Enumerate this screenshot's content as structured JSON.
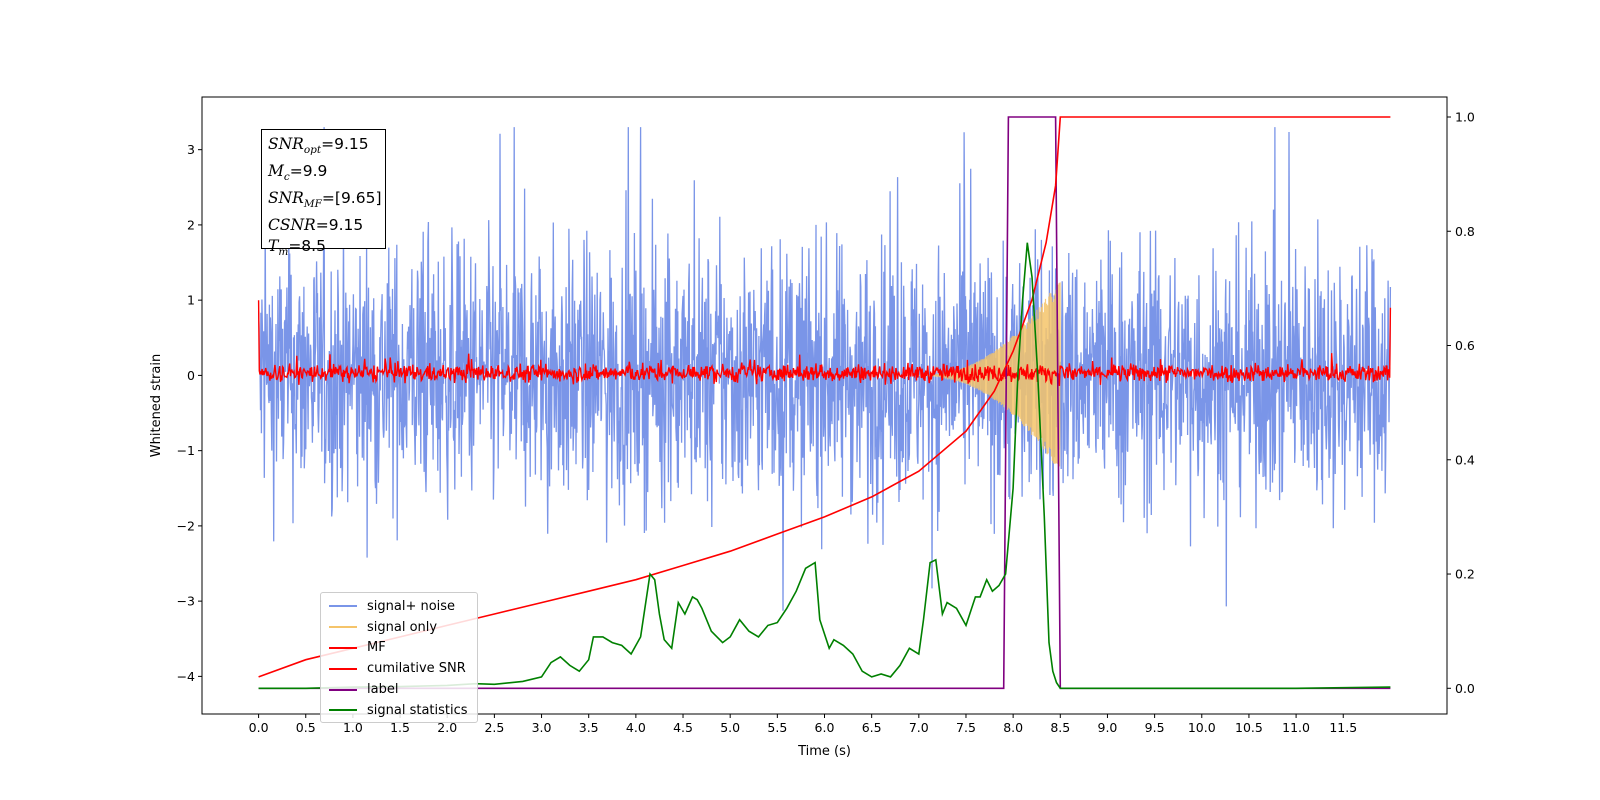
{
  "chart_data": {
    "type": "line",
    "title": "",
    "xlabel": "Time (s)",
    "ylabel": "Whitened strain",
    "xlim": [
      -0.6,
      12.6
    ],
    "ylim": [
      -4.5,
      3.7
    ],
    "y2lim": [
      -0.045,
      1.035
    ],
    "x_ticks": [
      0.0,
      0.5,
      1.0,
      1.5,
      2.0,
      2.5,
      3.0,
      3.5,
      4.0,
      4.5,
      5.0,
      5.5,
      6.0,
      6.5,
      7.0,
      7.5,
      8.0,
      8.5,
      9.0,
      9.5,
      10.0,
      10.5,
      11.0,
      11.5
    ],
    "x_tick_labels": [
      "0.0",
      "0.5",
      "1.0",
      "1.5",
      "2.0",
      "2.5",
      "3.0",
      "3.5",
      "4.0",
      "4.5",
      "5.0",
      "5.5",
      "6.0",
      "6.5",
      "7.0",
      "7.5",
      "8.0",
      "8.5",
      "9.0",
      "9.5",
      "10.0",
      "10.5",
      "11.0",
      "11.5"
    ],
    "y_ticks": [
      3,
      2,
      1,
      0,
      -1,
      -2,
      -3,
      -4
    ],
    "y_tick_labels": [
      "3",
      "2",
      "1",
      "0",
      "−1",
      "−2",
      "−3",
      "−4"
    ],
    "y2_ticks": [
      1.0,
      0.8,
      0.6,
      0.4,
      0.2,
      0.0
    ],
    "y2_tick_labels": [
      "1.0",
      "0.8",
      "0.6",
      "0.4",
      "0.2",
      "0.0"
    ],
    "grid": false,
    "legend_position": "lower-left",
    "series": [
      {
        "name": "signal+ noise",
        "color": "#7a95e8",
        "axis": "left",
        "description_range": [
          -3.5,
          3.3
        ],
        "t_range": [
          0.0,
          12.0
        ]
      },
      {
        "name": "signal only",
        "color": "#f5c46a",
        "axis": "left",
        "peak_amplitude": 1.3,
        "t_peak": 8.5
      },
      {
        "name": "MF",
        "color": "#ff0000",
        "axis": "left",
        "typical_range": [
          -0.15,
          0.3
        ],
        "t_range": [
          0.0,
          12.0
        ]
      },
      {
        "name": "cumilative SNR",
        "color": "#ff0000",
        "axis": "right",
        "x": [
          0.0,
          0.5,
          1.0,
          1.5,
          2.0,
          2.5,
          3.0,
          3.5,
          4.0,
          4.5,
          5.0,
          5.5,
          6.0,
          6.5,
          7.0,
          7.5,
          7.8,
          8.0,
          8.2,
          8.35,
          8.45,
          8.5,
          12.0
        ],
        "values": [
          0.02,
          0.05,
          0.07,
          0.09,
          0.11,
          0.13,
          0.15,
          0.17,
          0.19,
          0.215,
          0.24,
          0.27,
          0.3,
          0.335,
          0.38,
          0.45,
          0.52,
          0.59,
          0.68,
          0.78,
          0.88,
          1.0,
          1.0
        ]
      },
      {
        "name": "label",
        "color": "#800080",
        "axis": "right",
        "x": [
          0.0,
          7.9,
          7.95,
          8.45,
          8.5,
          12.0
        ],
        "values": [
          0.0,
          0.0,
          1.0,
          1.0,
          0.0,
          0.0
        ]
      },
      {
        "name": "signal statistics",
        "color": "#008000",
        "axis": "right",
        "x": [
          0.0,
          0.5,
          1.0,
          1.5,
          2.0,
          2.3,
          2.5,
          2.8,
          3.0,
          3.1,
          3.2,
          3.3,
          3.4,
          3.5,
          3.55,
          3.65,
          3.75,
          3.85,
          3.95,
          4.05,
          4.15,
          4.2,
          4.25,
          4.3,
          4.38,
          4.45,
          4.52,
          4.6,
          4.65,
          4.7,
          4.8,
          4.92,
          5.0,
          5.1,
          5.2,
          5.3,
          5.4,
          5.5,
          5.6,
          5.7,
          5.8,
          5.9,
          5.95,
          6.05,
          6.1,
          6.2,
          6.3,
          6.4,
          6.5,
          6.6,
          6.7,
          6.8,
          6.9,
          7.0,
          7.05,
          7.12,
          7.18,
          7.25,
          7.3,
          7.4,
          7.5,
          7.6,
          7.65,
          7.72,
          7.78,
          7.85,
          7.92,
          8.0,
          8.05,
          8.1,
          8.15,
          8.2,
          8.26,
          8.33,
          8.38,
          8.42,
          8.46,
          8.5,
          9.0,
          10.0,
          11.0,
          12.0
        ],
        "values": [
          0.0,
          0.0,
          0.002,
          0.003,
          0.005,
          0.008,
          0.007,
          0.012,
          0.02,
          0.045,
          0.055,
          0.04,
          0.03,
          0.05,
          0.09,
          0.09,
          0.08,
          0.075,
          0.06,
          0.09,
          0.2,
          0.19,
          0.13,
          0.085,
          0.07,
          0.15,
          0.13,
          0.16,
          0.155,
          0.14,
          0.1,
          0.08,
          0.09,
          0.12,
          0.1,
          0.09,
          0.11,
          0.115,
          0.14,
          0.17,
          0.21,
          0.22,
          0.12,
          0.07,
          0.085,
          0.075,
          0.06,
          0.03,
          0.02,
          0.025,
          0.02,
          0.04,
          0.07,
          0.06,
          0.12,
          0.22,
          0.225,
          0.13,
          0.15,
          0.14,
          0.11,
          0.16,
          0.16,
          0.19,
          0.17,
          0.18,
          0.2,
          0.35,
          0.55,
          0.68,
          0.78,
          0.72,
          0.55,
          0.3,
          0.08,
          0.03,
          0.01,
          0.0,
          0.0,
          0.0,
          0.0,
          0.002
        ]
      }
    ]
  },
  "stats_box": {
    "snr_opt_label": "SNR",
    "snr_opt_sub": "opt",
    "snr_opt_value": "=9.15",
    "mc_label": "M",
    "mc_sub": "c",
    "mc_value": "=9.9",
    "snr_mf_label": "SNR",
    "snr_mf_sub": "MF",
    "snr_mf_value": "=[9.65]",
    "csnr_label": "CSNR",
    "csnr_value": "=9.15",
    "tm_label": "T",
    "tm_sub": "m",
    "tm_value": "=8.5"
  },
  "legend": [
    {
      "label": "signal+ noise",
      "color": "#7a95e8"
    },
    {
      "label": "signal only",
      "color": "#f5c46a"
    },
    {
      "label": "MF",
      "color": "#ff0000"
    },
    {
      "label": "cumilative SNR",
      "color": "#ff0000"
    },
    {
      "label": "label",
      "color": "#800080"
    },
    {
      "label": "signal statistics",
      "color": "#008000"
    }
  ]
}
